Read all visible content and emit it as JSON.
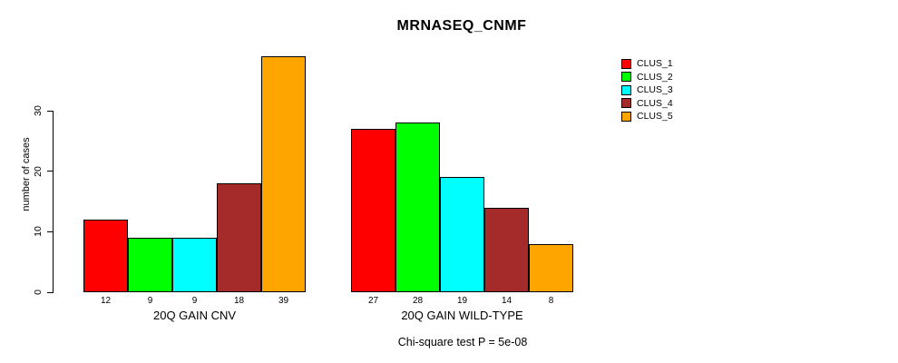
{
  "chart_data": {
    "type": "bar",
    "title": "MRNASEQ_CNMF",
    "ylabel": "number of cases",
    "ylim": [
      0,
      39
    ],
    "yticks": [
      0,
      10,
      20,
      30
    ],
    "grid": false,
    "legend_position": "right-outside",
    "background": "#FFFFFF",
    "bar_border_color": "#000000",
    "categories": [
      "20Q GAIN CNV",
      "20Q GAIN WILD-TYPE"
    ],
    "series": [
      {
        "name": "CLUS_1",
        "color": "#FF0000",
        "values": [
          12,
          27
        ]
      },
      {
        "name": "CLUS_2",
        "color": "#00FF00",
        "values": [
          9,
          28
        ]
      },
      {
        "name": "CLUS_3",
        "color": "#00FFFF",
        "values": [
          9,
          19
        ]
      },
      {
        "name": "CLUS_4",
        "color": "#A52A2A",
        "values": [
          18,
          14
        ]
      },
      {
        "name": "CLUS_5",
        "color": "#FFA500",
        "values": [
          39,
          8
        ]
      }
    ],
    "bar_value_labels": [
      [
        12,
        9,
        9,
        18,
        39
      ],
      [
        27,
        28,
        19,
        14,
        8
      ]
    ],
    "annotation": "Chi-square test P = 5e-08"
  }
}
